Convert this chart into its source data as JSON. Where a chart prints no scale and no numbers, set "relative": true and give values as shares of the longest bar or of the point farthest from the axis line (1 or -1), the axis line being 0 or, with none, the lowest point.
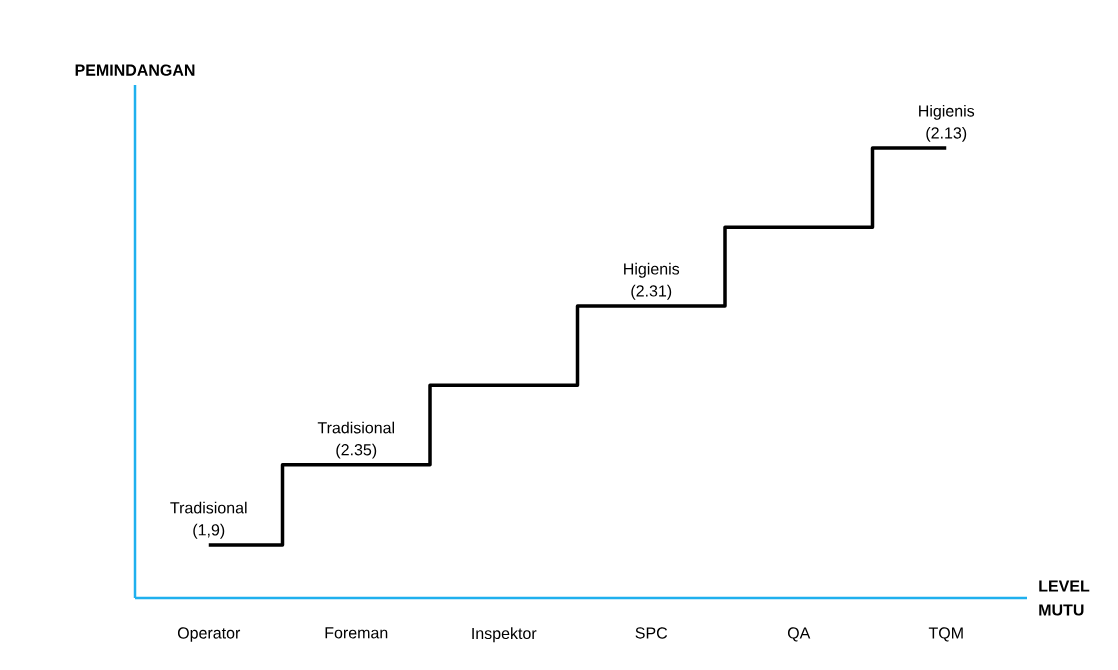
{
  "chart_data": {
    "type": "step",
    "relative": true,
    "ylabel": "PEMINDANGAN",
    "xlabel": "LEVEL MUTU",
    "categories": [
      "Operator",
      "Foreman",
      "Inspektor",
      "SPC",
      "QA",
      "TQM"
    ],
    "series": [
      {
        "color": "#000000",
        "values": [
          0.118,
          0.296,
          0.473,
          0.649,
          0.824,
          1
        ]
      }
    ],
    "annotations": [
      {
        "text": "Tradisional (1,9)",
        "x": "Operator",
        "y": 0.118
      },
      {
        "text": "Tradisional (2.35)",
        "x": "Foreman",
        "y": 0.296
      },
      {
        "text": "Higienis (2.31)",
        "x": "SPC",
        "y": 0.649
      },
      {
        "text": "Higienis (2.13)",
        "x": "TQM",
        "y": 1
      }
    ]
  }
}
